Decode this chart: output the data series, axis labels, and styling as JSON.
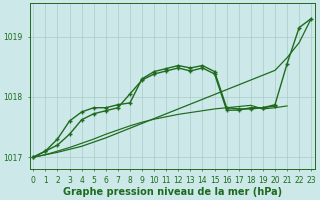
{
  "title": "Graphe pression niveau de la mer (hPa)",
  "x_hours": [
    0,
    1,
    2,
    3,
    4,
    5,
    6,
    7,
    8,
    9,
    10,
    11,
    12,
    13,
    14,
    15,
    16,
    17,
    18,
    19,
    20,
    21,
    22,
    23
  ],
  "series": [
    {
      "name": "line_straight",
      "color": "#1e6b1e",
      "linewidth": 0.9,
      "marker": null,
      "markersize": 0,
      "values": [
        1017.0,
        1017.04,
        1017.08,
        1017.13,
        1017.18,
        1017.25,
        1017.32,
        1017.4,
        1017.48,
        1017.56,
        1017.64,
        1017.72,
        1017.8,
        1017.88,
        1017.96,
        1018.04,
        1018.12,
        1018.2,
        1018.28,
        1018.36,
        1018.44,
        1018.65,
        1018.9,
        1019.3
      ]
    },
    {
      "name": "line_hump_marked",
      "color": "#1e6b1e",
      "linewidth": 1.0,
      "marker": "+",
      "markersize": 3,
      "values": [
        1017.0,
        1017.1,
        1017.3,
        1017.6,
        1017.75,
        1017.82,
        1017.82,
        1017.87,
        1017.9,
        1018.3,
        1018.42,
        1018.47,
        1018.52,
        1018.48,
        1018.52,
        1018.42,
        1017.82,
        1017.8,
        1017.8,
        1017.82,
        1017.85,
        null,
        null,
        null
      ]
    },
    {
      "name": "line_top_marked",
      "color": "#1e6b1e",
      "linewidth": 1.0,
      "marker": "+",
      "markersize": 3,
      "values": [
        1017.0,
        1017.1,
        1017.2,
        1017.38,
        1017.62,
        1017.72,
        1017.77,
        1017.82,
        1018.05,
        1018.28,
        1018.38,
        1018.43,
        1018.48,
        1018.43,
        1018.48,
        1018.38,
        1017.78,
        1017.78,
        1017.82,
        1017.82,
        1017.87,
        1018.55,
        1019.15,
        1019.3
      ]
    },
    {
      "name": "line_bottom_smooth",
      "color": "#1e6b1e",
      "linewidth": 0.85,
      "marker": null,
      "markersize": 0,
      "values": [
        1017.0,
        1017.04,
        1017.1,
        1017.16,
        1017.23,
        1017.3,
        1017.38,
        1017.45,
        1017.52,
        1017.58,
        1017.63,
        1017.67,
        1017.71,
        1017.74,
        1017.77,
        1017.8,
        1017.82,
        1017.84,
        1017.86,
        1017.8,
        1017.82,
        1017.85,
        null,
        null
      ]
    }
  ],
  "xlim": [
    -0.3,
    23.3
  ],
  "ylim": [
    1016.8,
    1019.55
  ],
  "yticks": [
    1017,
    1018,
    1019
  ],
  "xticks": [
    0,
    1,
    2,
    3,
    4,
    5,
    6,
    7,
    8,
    9,
    10,
    11,
    12,
    13,
    14,
    15,
    16,
    17,
    18,
    19,
    20,
    21,
    22,
    23
  ],
  "bg_color": "#cce8e8",
  "grid_color": "#aacccc",
  "line_color": "#1e6b1e",
  "title_fontsize": 7.0,
  "tick_fontsize": 5.5
}
